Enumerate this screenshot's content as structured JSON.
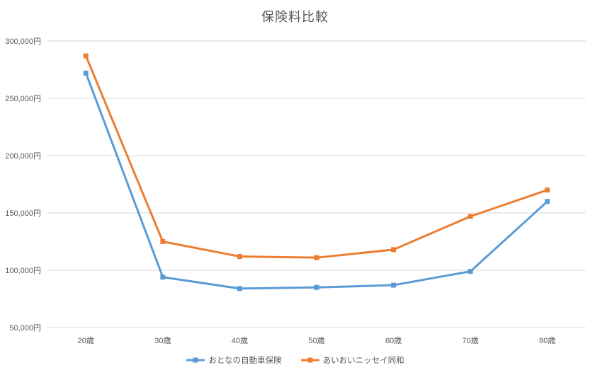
{
  "chart_data": {
    "type": "line",
    "title": "保険料比較",
    "categories": [
      "20歳",
      "30歳",
      "40歳",
      "50歳",
      "60歳",
      "70歳",
      "80歳"
    ],
    "series": [
      {
        "name": "おとなの自動車保険",
        "color": "#5B9BD5",
        "values": [
          272000,
          94000,
          84000,
          85000,
          87000,
          99000,
          160000
        ]
      },
      {
        "name": "あいおいニッセイ同和",
        "color": "#ED7D31",
        "values": [
          287000,
          125000,
          112000,
          111000,
          118000,
          147000,
          170000
        ]
      }
    ],
    "ylim": [
      50000,
      300000
    ],
    "yticks": [
      {
        "value": 300000,
        "label": "300,000円"
      },
      {
        "value": 250000,
        "label": "250,000円"
      },
      {
        "value": 200000,
        "label": "200,000円"
      },
      {
        "value": 150000,
        "label": "150,000円"
      },
      {
        "value": 100000,
        "label": "100,000円"
      },
      {
        "value": 50000,
        "label": "50,000円"
      }
    ],
    "xlabel": "",
    "ylabel": "",
    "grid": true,
    "legend_position": "bottom",
    "marker": "square",
    "colors": {
      "grid": "#D9D9D9",
      "text": "#595959",
      "background": "#FFFFFF"
    }
  }
}
